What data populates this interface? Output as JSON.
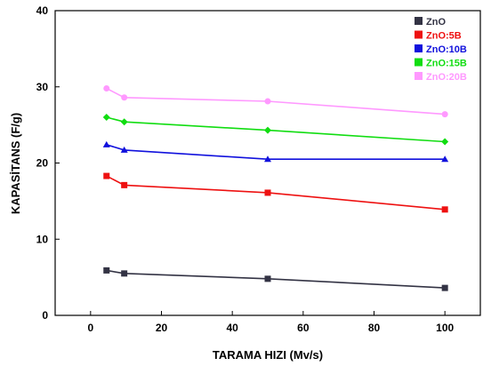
{
  "chart_data": {
    "type": "line",
    "xlabel": "TARAMA HIZI (Mv/s)",
    "ylabel": "KAPASİTANS (F/g)",
    "xlim": [
      -10,
      110
    ],
    "ylim": [
      0,
      40
    ],
    "xticks": [
      0,
      20,
      40,
      60,
      80,
      100
    ],
    "yticks": [
      0,
      10,
      20,
      30,
      40
    ],
    "grid": false,
    "legend_position": "top-right",
    "x": [
      4.5,
      9.5,
      50,
      100
    ],
    "series": [
      {
        "name": "ZnO",
        "color": "#333344",
        "marker": "square",
        "values": [
          5.9,
          5.5,
          4.8,
          3.6
        ]
      },
      {
        "name": "ZnO:5B",
        "color": "#ee1111",
        "marker": "square",
        "values": [
          18.3,
          17.1,
          16.1,
          13.9
        ]
      },
      {
        "name": "ZnO:10B",
        "color": "#1111dd",
        "marker": "triangle",
        "values": [
          22.4,
          21.7,
          20.5,
          20.5
        ]
      },
      {
        "name": "ZnO:15B",
        "color": "#11dd11",
        "marker": "diamond",
        "values": [
          26.0,
          25.4,
          24.3,
          22.8
        ]
      },
      {
        "name": "ZnO:20B",
        "color": "#ff99ff",
        "marker": "circle",
        "values": [
          29.8,
          28.6,
          28.1,
          26.4
        ]
      }
    ]
  }
}
